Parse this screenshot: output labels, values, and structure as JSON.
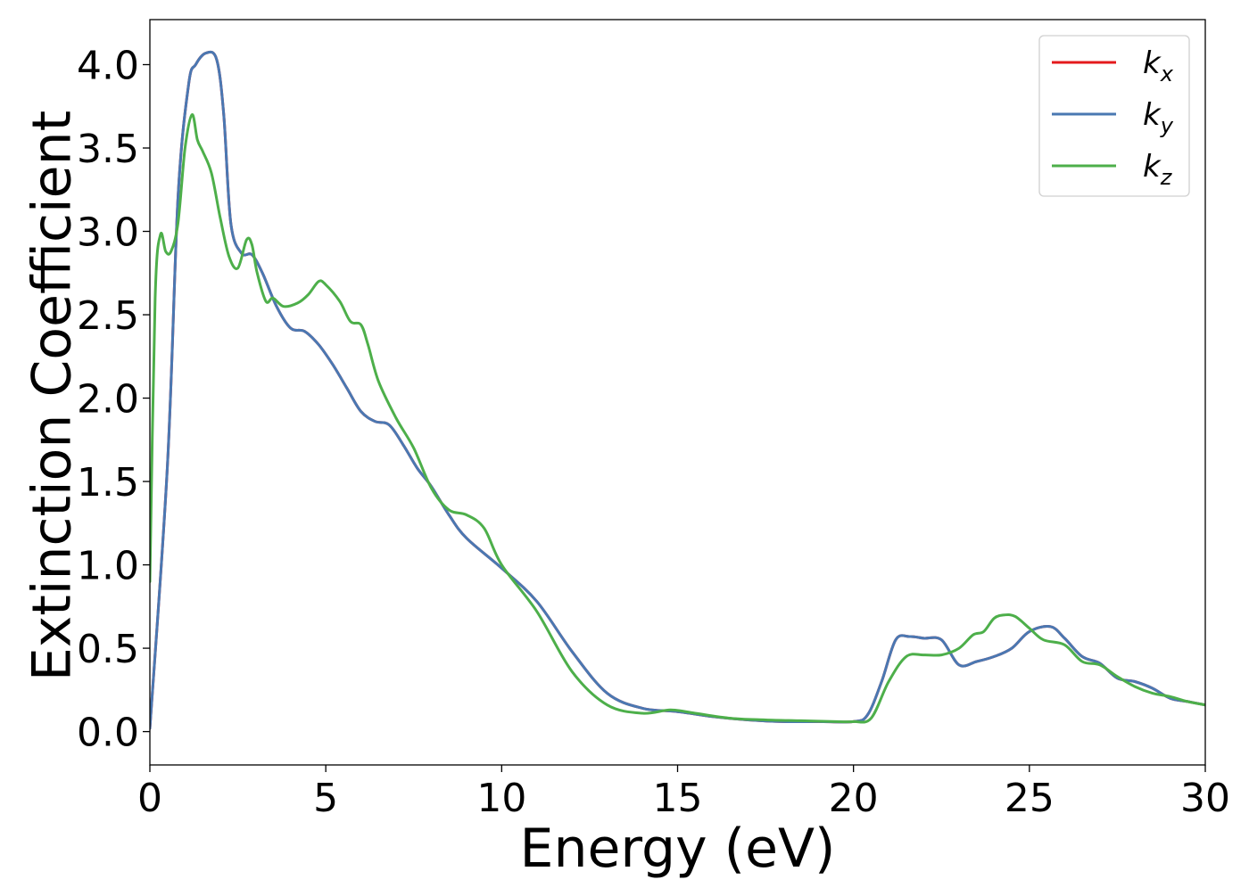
{
  "chart_data": {
    "type": "line",
    "xlabel": "Energy (eV)",
    "ylabel": "Extinction Coefficient",
    "xlim": [
      0,
      30
    ],
    "ylim": [
      -0.2,
      4.27
    ],
    "x_ticks": [
      "0",
      "5",
      "10",
      "15",
      "20",
      "25",
      "30"
    ],
    "y_ticks": [
      "0.0",
      "0.5",
      "1.0",
      "1.5",
      "2.0",
      "2.5",
      "3.0",
      "3.5",
      "4.0"
    ],
    "x_tick_values": [
      0,
      5,
      10,
      15,
      20,
      25,
      30
    ],
    "y_tick_values": [
      0,
      0.5,
      1.0,
      1.5,
      2.0,
      2.5,
      3.0,
      3.5,
      4.0
    ],
    "grid": false,
    "legend_position": "top-right",
    "series": [
      {
        "name": "k_x",
        "label_main": "k",
        "label_sub": "x",
        "color": "#e41a1c",
        "x": [
          0,
          0.5,
          0.8,
          1.1,
          1.3,
          1.6,
          1.9,
          2.1,
          2.3,
          2.6,
          2.9,
          3.2,
          3.6,
          4.0,
          4.4,
          4.8,
          5.2,
          5.6,
          6.0,
          6.4,
          6.8,
          7.2,
          7.6,
          8.0,
          8.5,
          9.0,
          10.0,
          11.0,
          12.0,
          13.0,
          14.0,
          15.0,
          16.0,
          17.0,
          18.0,
          19.0,
          20.0,
          20.4,
          20.8,
          21.2,
          21.6,
          22.0,
          22.5,
          23.0,
          23.5,
          24.0,
          24.5,
          25.0,
          25.6,
          26.0,
          26.5,
          27.0,
          27.5,
          28.0,
          28.5,
          29.0,
          29.5,
          30.0
        ],
        "y": [
          0.02,
          1.6,
          3.2,
          3.88,
          4.0,
          4.07,
          4.03,
          3.7,
          3.05,
          2.87,
          2.86,
          2.75,
          2.55,
          2.42,
          2.4,
          2.32,
          2.2,
          2.06,
          1.92,
          1.86,
          1.84,
          1.72,
          1.58,
          1.47,
          1.3,
          1.16,
          0.98,
          0.78,
          0.48,
          0.23,
          0.14,
          0.12,
          0.09,
          0.07,
          0.06,
          0.06,
          0.06,
          0.1,
          0.3,
          0.55,
          0.57,
          0.56,
          0.55,
          0.4,
          0.42,
          0.45,
          0.5,
          0.6,
          0.63,
          0.56,
          0.45,
          0.41,
          0.32,
          0.3,
          0.26,
          0.2,
          0.18,
          0.16
        ]
      },
      {
        "name": "k_y",
        "label_main": "k",
        "label_sub": "y",
        "color": "#4a78b2",
        "x": [
          0,
          0.5,
          0.8,
          1.1,
          1.3,
          1.6,
          1.9,
          2.1,
          2.3,
          2.6,
          2.9,
          3.2,
          3.6,
          4.0,
          4.4,
          4.8,
          5.2,
          5.6,
          6.0,
          6.4,
          6.8,
          7.2,
          7.6,
          8.0,
          8.5,
          9.0,
          10.0,
          11.0,
          12.0,
          13.0,
          14.0,
          15.0,
          16.0,
          17.0,
          18.0,
          19.0,
          20.0,
          20.4,
          20.8,
          21.2,
          21.6,
          22.0,
          22.5,
          23.0,
          23.5,
          24.0,
          24.5,
          25.0,
          25.6,
          26.0,
          26.5,
          27.0,
          27.5,
          28.0,
          28.5,
          29.0,
          29.5,
          30.0
        ],
        "y": [
          0.02,
          1.6,
          3.2,
          3.88,
          4.0,
          4.07,
          4.03,
          3.7,
          3.05,
          2.87,
          2.86,
          2.75,
          2.55,
          2.42,
          2.4,
          2.32,
          2.2,
          2.06,
          1.92,
          1.86,
          1.84,
          1.72,
          1.58,
          1.47,
          1.3,
          1.16,
          0.98,
          0.78,
          0.48,
          0.23,
          0.14,
          0.12,
          0.09,
          0.07,
          0.06,
          0.06,
          0.06,
          0.1,
          0.3,
          0.55,
          0.57,
          0.56,
          0.55,
          0.4,
          0.42,
          0.45,
          0.5,
          0.6,
          0.63,
          0.56,
          0.45,
          0.41,
          0.32,
          0.3,
          0.26,
          0.2,
          0.18,
          0.16
        ]
      },
      {
        "name": "k_z",
        "label_main": "k",
        "label_sub": "z",
        "color": "#4daf4a",
        "x": [
          0,
          0.15,
          0.3,
          0.45,
          0.6,
          0.8,
          1.0,
          1.2,
          1.35,
          1.5,
          1.75,
          2.0,
          2.25,
          2.5,
          2.75,
          2.9,
          3.05,
          3.3,
          3.5,
          3.8,
          4.2,
          4.5,
          4.8,
          5.0,
          5.4,
          5.7,
          6.0,
          6.2,
          6.5,
          7.0,
          7.5,
          8.0,
          8.5,
          9.0,
          9.5,
          10.0,
          11.0,
          12.0,
          13.0,
          14.0,
          14.8,
          15.5,
          16.5,
          17.5,
          18.5,
          19.5,
          20.0,
          20.5,
          21.0,
          21.5,
          22.0,
          22.5,
          23.0,
          23.4,
          23.7,
          24.0,
          24.3,
          24.6,
          25.0,
          25.4,
          26.0,
          26.5,
          27.0,
          27.5,
          28.0,
          28.5,
          29.0,
          29.5,
          30.0
        ],
        "y": [
          0.9,
          2.6,
          2.98,
          2.88,
          2.88,
          3.05,
          3.5,
          3.7,
          3.55,
          3.48,
          3.35,
          3.08,
          2.85,
          2.78,
          2.95,
          2.92,
          2.75,
          2.58,
          2.6,
          2.55,
          2.57,
          2.62,
          2.7,
          2.68,
          2.58,
          2.46,
          2.44,
          2.32,
          2.1,
          1.88,
          1.7,
          1.46,
          1.33,
          1.3,
          1.22,
          1.0,
          0.72,
          0.36,
          0.16,
          0.11,
          0.13,
          0.11,
          0.08,
          0.07,
          0.065,
          0.06,
          0.06,
          0.08,
          0.3,
          0.45,
          0.46,
          0.46,
          0.5,
          0.58,
          0.6,
          0.68,
          0.7,
          0.69,
          0.62,
          0.55,
          0.52,
          0.42,
          0.4,
          0.33,
          0.27,
          0.23,
          0.21,
          0.18,
          0.16
        ]
      }
    ]
  }
}
